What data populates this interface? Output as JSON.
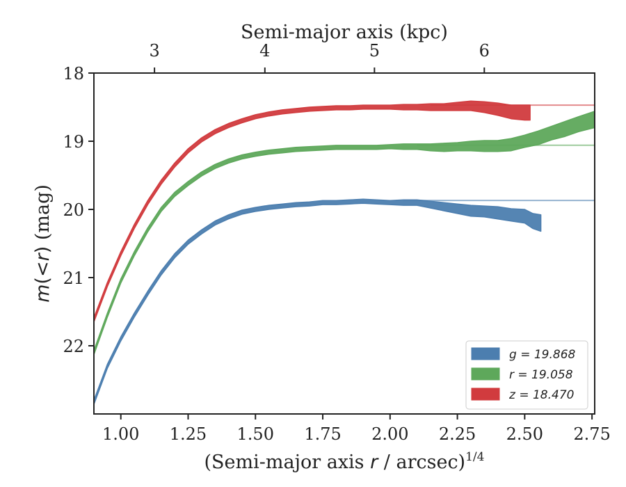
{
  "chart_data": {
    "type": "line",
    "xlabel_bottom": "(Semi-major axis r / arcsec)^1/4",
    "xlabel_top": "Semi-major axis (kpc)",
    "ylabel": "m(< r) (mag)",
    "xlim": [
      0.9,
      2.76
    ],
    "ylim": [
      23.0,
      18.0
    ],
    "y_inverted": true,
    "grid": false,
    "legend_position": "bottom-right",
    "x_ticks": [
      "1.00",
      "1.25",
      "1.50",
      "1.75",
      "2.00",
      "2.25",
      "2.50",
      "2.75"
    ],
    "x_tick_values": [
      1.0,
      1.25,
      1.5,
      1.75,
      2.0,
      2.25,
      2.5,
      2.75
    ],
    "y_ticks": [
      "18",
      "19",
      "20",
      "21",
      "22"
    ],
    "y_tick_values": [
      18,
      19,
      20,
      21,
      22
    ],
    "top_ticks": [
      "3",
      "4",
      "5",
      "6"
    ],
    "top_tick_positions_bottom_units": [
      1.125,
      1.535,
      1.942,
      2.35
    ],
    "series": [
      {
        "name": "g = 19.868",
        "band": "g",
        "total_mag": 19.868,
        "color": "#4c7eaf",
        "asymptote_from_x": 2.05,
        "x": [
          0.9,
          0.95,
          1.0,
          1.05,
          1.1,
          1.15,
          1.2,
          1.25,
          1.3,
          1.35,
          1.4,
          1.45,
          1.5,
          1.55,
          1.6,
          1.65,
          1.7,
          1.75,
          1.8,
          1.85,
          1.9,
          1.95,
          2.0,
          2.05,
          2.1,
          2.15,
          2.2,
          2.25,
          2.3,
          2.35,
          2.4,
          2.45,
          2.5,
          2.53,
          2.56
        ],
        "y": [
          22.83,
          22.3,
          21.9,
          21.55,
          21.23,
          20.93,
          20.68,
          20.48,
          20.33,
          20.2,
          20.11,
          20.04,
          20.0,
          19.97,
          19.95,
          19.93,
          19.92,
          19.9,
          19.9,
          19.89,
          19.88,
          19.89,
          19.9,
          19.9,
          19.9,
          19.93,
          19.96,
          19.99,
          20.02,
          20.03,
          20.05,
          20.08,
          20.1,
          20.17,
          20.2
        ],
        "width": [
          0.03,
          0.03,
          0.03,
          0.03,
          0.03,
          0.03,
          0.03,
          0.03,
          0.03,
          0.03,
          0.03,
          0.03,
          0.03,
          0.03,
          0.03,
          0.03,
          0.03,
          0.03,
          0.03,
          0.03,
          0.03,
          0.03,
          0.03,
          0.04,
          0.04,
          0.05,
          0.06,
          0.07,
          0.08,
          0.08,
          0.09,
          0.09,
          0.1,
          0.11,
          0.12
        ]
      },
      {
        "name": "r = 19.058",
        "band": "r",
        "total_mag": 19.058,
        "color": "#5ea85b",
        "asymptote_from_x": 2.1,
        "x": [
          0.9,
          0.95,
          1.0,
          1.05,
          1.1,
          1.15,
          1.2,
          1.25,
          1.3,
          1.35,
          1.4,
          1.45,
          1.5,
          1.55,
          1.6,
          1.65,
          1.7,
          1.75,
          1.8,
          1.85,
          1.9,
          1.95,
          2.0,
          2.05,
          2.1,
          2.15,
          2.2,
          2.25,
          2.3,
          2.35,
          2.4,
          2.45,
          2.5,
          2.55,
          2.6,
          2.65,
          2.7,
          2.76
        ],
        "y": [
          22.1,
          21.55,
          21.05,
          20.65,
          20.3,
          20.0,
          19.78,
          19.62,
          19.48,
          19.37,
          19.29,
          19.23,
          19.19,
          19.16,
          19.14,
          19.12,
          19.11,
          19.1,
          19.09,
          19.09,
          19.09,
          19.09,
          19.08,
          19.08,
          19.08,
          19.09,
          19.09,
          19.08,
          19.07,
          19.07,
          19.07,
          19.05,
          19.0,
          18.95,
          18.88,
          18.82,
          18.75,
          18.68
        ],
        "width": [
          0.03,
          0.03,
          0.03,
          0.03,
          0.03,
          0.03,
          0.03,
          0.03,
          0.03,
          0.03,
          0.03,
          0.03,
          0.03,
          0.03,
          0.03,
          0.03,
          0.03,
          0.03,
          0.03,
          0.03,
          0.03,
          0.03,
          0.03,
          0.04,
          0.04,
          0.05,
          0.06,
          0.06,
          0.07,
          0.08,
          0.08,
          0.09,
          0.09,
          0.1,
          0.1,
          0.11,
          0.11,
          0.12
        ]
      },
      {
        "name": "z = 18.470",
        "band": "z",
        "total_mag": 18.47,
        "color": "#d13b3e",
        "asymptote_from_x": 2.15,
        "x": [
          0.9,
          0.95,
          1.0,
          1.05,
          1.1,
          1.15,
          1.2,
          1.25,
          1.3,
          1.35,
          1.4,
          1.45,
          1.5,
          1.55,
          1.6,
          1.65,
          1.7,
          1.75,
          1.8,
          1.85,
          1.9,
          1.95,
          2.0,
          2.05,
          2.1,
          2.15,
          2.2,
          2.25,
          2.3,
          2.35,
          2.4,
          2.45,
          2.5,
          2.52
        ],
        "y": [
          21.62,
          21.1,
          20.65,
          20.25,
          19.9,
          19.6,
          19.35,
          19.14,
          18.98,
          18.86,
          18.77,
          18.7,
          18.64,
          18.6,
          18.57,
          18.55,
          18.53,
          18.52,
          18.51,
          18.51,
          18.5,
          18.5,
          18.5,
          18.5,
          18.5,
          18.5,
          18.5,
          18.49,
          18.48,
          18.5,
          18.53,
          18.57,
          18.58,
          18.58
        ],
        "width": [
          0.03,
          0.03,
          0.03,
          0.03,
          0.03,
          0.03,
          0.03,
          0.03,
          0.03,
          0.03,
          0.03,
          0.03,
          0.03,
          0.03,
          0.03,
          0.03,
          0.03,
          0.03,
          0.03,
          0.03,
          0.03,
          0.03,
          0.03,
          0.04,
          0.04,
          0.05,
          0.05,
          0.06,
          0.07,
          0.08,
          0.09,
          0.1,
          0.11,
          0.11
        ]
      }
    ]
  }
}
